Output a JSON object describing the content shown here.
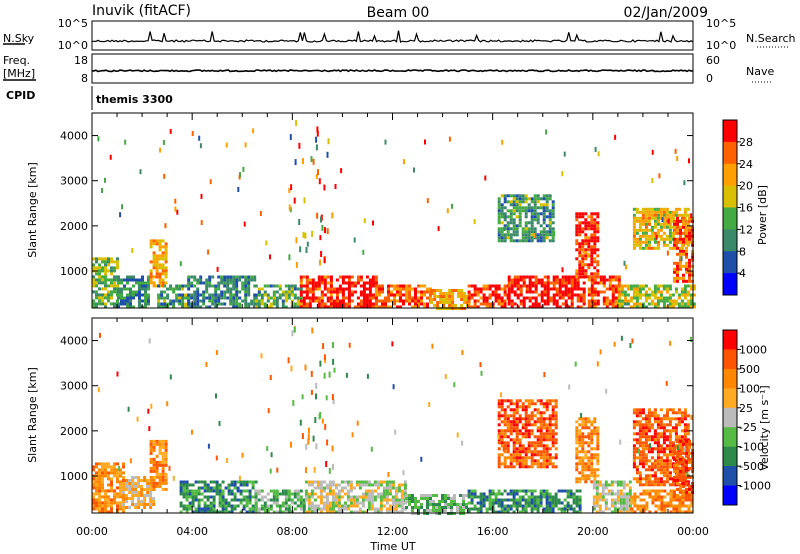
{
  "header": {
    "station": "Inuvik (fitACF)",
    "beam": "Beam 00",
    "date": "02/Jan/2009"
  },
  "nsky_panel": {
    "left_label": "N.Sky",
    "right_label": "N.Search",
    "left_ticks": [
      "10^5",
      "10^0"
    ],
    "right_ticks": [
      "10^5",
      "10^0"
    ]
  },
  "freq_panel": {
    "left_label": "Freq.",
    "left_unit": "[MHz]",
    "right_label": "Nave",
    "left_ticks": [
      "18",
      "8"
    ],
    "right_ticks": [
      "60",
      "0"
    ]
  },
  "cpid": {
    "label": "CPID",
    "program": "themis 3300"
  },
  "chart_data": [
    {
      "type": "heatmap",
      "name": "power",
      "ylabel": "Slant Range [km]",
      "x_range_hours": [
        0,
        24
      ],
      "y_range_km": [
        180,
        4500
      ],
      "y_ticks": [
        "1000",
        "2000",
        "3000",
        "4000"
      ],
      "colorbar": {
        "label": "Power [dB]",
        "ticks": [
          "4",
          "8",
          "12",
          "16",
          "20",
          "24",
          "28"
        ],
        "range": [
          0,
          30
        ],
        "colors": [
          "#0000ff",
          "#1f4fa8",
          "#3a8a6a",
          "#44aa44",
          "#d8c000",
          "#ffa000",
          "#ff6000",
          "#ff0000"
        ]
      },
      "regions": [
        {
          "t": [
            0,
            1.0
          ],
          "r": [
            200,
            1300
          ],
          "v": 14
        },
        {
          "t": [
            1.0,
            2.3
          ],
          "r": [
            200,
            900
          ],
          "v": 9
        },
        {
          "t": [
            2.3,
            3.0
          ],
          "r": [
            700,
            1700
          ],
          "v": 20
        },
        {
          "t": [
            2.6,
            3.8
          ],
          "r": [
            200,
            700
          ],
          "v": 11
        },
        {
          "t": [
            3.8,
            6.5
          ],
          "r": [
            200,
            900
          ],
          "v": 9
        },
        {
          "t": [
            6.5,
            8.3
          ],
          "r": [
            200,
            700
          ],
          "v": 12
        },
        {
          "t": [
            8.3,
            9.5
          ],
          "r": [
            200,
            900
          ],
          "v": 26
        },
        {
          "t": [
            9.5,
            11.3
          ],
          "r": [
            200,
            900
          ],
          "v": 28
        },
        {
          "t": [
            11.3,
            13.5
          ],
          "r": [
            200,
            700
          ],
          "v": 24
        },
        {
          "t": [
            13.5,
            15.0
          ],
          "r": [
            200,
            600
          ],
          "v": 20
        },
        {
          "t": [
            15.0,
            16.6
          ],
          "r": [
            200,
            700
          ],
          "v": 26
        },
        {
          "t": [
            16.6,
            19.6
          ],
          "r": [
            200,
            900
          ],
          "v": 29
        },
        {
          "t": [
            16.2,
            18.4
          ],
          "r": [
            1700,
            2700
          ],
          "v": 11
        },
        {
          "t": [
            19.3,
            20.2
          ],
          "r": [
            900,
            2300
          ],
          "v": 27
        },
        {
          "t": [
            19.8,
            21.0
          ],
          "r": [
            200,
            900
          ],
          "v": 26
        },
        {
          "t": [
            21.0,
            24.0
          ],
          "r": [
            200,
            700
          ],
          "v": 16
        },
        {
          "t": [
            21.6,
            23.8
          ],
          "r": [
            1500,
            2400
          ],
          "v": 18
        },
        {
          "t": [
            23.2,
            24.0
          ],
          "r": [
            800,
            2200
          ],
          "v": 25
        }
      ],
      "scatter_band": {
        "t": [
          7.8,
          9.6
        ],
        "r": [
          1000,
          4400
        ]
      }
    },
    {
      "type": "heatmap",
      "name": "velocity",
      "ylabel": "Slant Range [km]",
      "x_range_hours": [
        0,
        24
      ],
      "y_range_km": [
        180,
        4500
      ],
      "y_ticks": [
        "1000",
        "2000",
        "3000",
        "4000"
      ],
      "x_ticks": [
        "00:00",
        "04:00",
        "08:00",
        "12:00",
        "16:00",
        "20:00",
        "00:00"
      ],
      "xlabel": "Time UT",
      "colorbar": {
        "label": "Velocity [m s⁻¹]",
        "ticks": [
          "1000",
          "500",
          "100",
          "25",
          "-25",
          "-100",
          "-500",
          "-1000"
        ],
        "colors": [
          "#0000ff",
          "#1f4fa8",
          "#2e8a4a",
          "#55bb44",
          "#bbbbbb",
          "#ffaa22",
          "#ff8800",
          "#ff5500",
          "#ff0000"
        ]
      },
      "regions": [
        {
          "t": [
            0,
            1.2
          ],
          "r": [
            200,
            1300
          ],
          "c": 6
        },
        {
          "t": [
            1.2,
            2.5
          ],
          "r": [
            300,
            1000
          ],
          "c": 5
        },
        {
          "t": [
            2.3,
            3.0
          ],
          "r": [
            700,
            1800
          ],
          "c": 6
        },
        {
          "t": [
            3.5,
            6.5
          ],
          "r": [
            200,
            900
          ],
          "c": 2
        },
        {
          "t": [
            6.5,
            8.5
          ],
          "r": [
            200,
            700
          ],
          "c": 3
        },
        {
          "t": [
            8.5,
            12.5
          ],
          "r": [
            200,
            900
          ],
          "c": 4
        },
        {
          "t": [
            12.5,
            15.0
          ],
          "r": [
            200,
            600
          ],
          "c": 3
        },
        {
          "t": [
            15.0,
            19.5
          ],
          "r": [
            200,
            700
          ],
          "c": 2
        },
        {
          "t": [
            16.2,
            18.5
          ],
          "r": [
            1200,
            2700
          ],
          "c": 7
        },
        {
          "t": [
            19.3,
            20.2
          ],
          "r": [
            900,
            2300
          ],
          "c": 6
        },
        {
          "t": [
            20.0,
            21.5
          ],
          "r": [
            200,
            900
          ],
          "c": 4
        },
        {
          "t": [
            21.5,
            24.0
          ],
          "r": [
            200,
            700
          ],
          "c": 6
        },
        {
          "t": [
            21.6,
            23.8
          ],
          "r": [
            800,
            2500
          ],
          "c": 7
        },
        {
          "t": [
            23.2,
            24.0
          ],
          "r": [
            600,
            1800
          ],
          "c": 7
        }
      ],
      "scatter_band": {
        "t": [
          7.8,
          9.6
        ],
        "r": [
          1000,
          4400
        ]
      }
    }
  ]
}
